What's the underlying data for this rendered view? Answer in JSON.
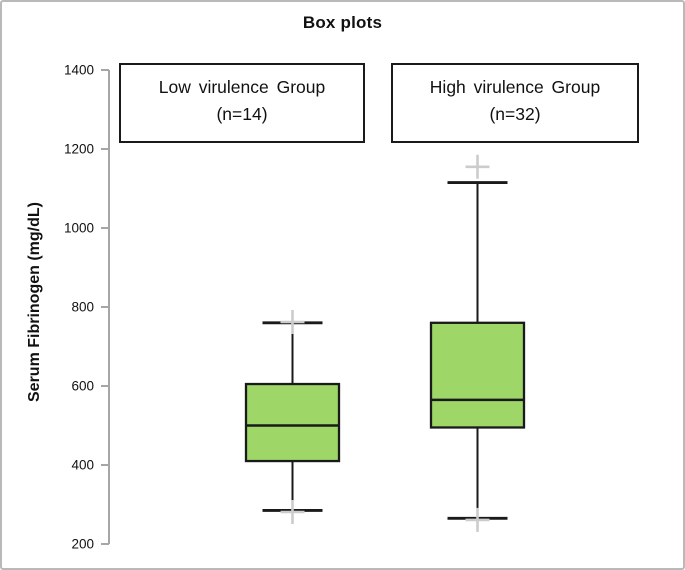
{
  "figure": {
    "background": "#ffffff",
    "border_color": "#b9b9b9"
  },
  "chart_data": {
    "type": "boxplot",
    "title": "Box plots",
    "xlabel": "",
    "ylabel": "Serum Fibrinogen (mg/dL)",
    "ylim": [
      200,
      1400
    ],
    "yticks": [
      200,
      400,
      600,
      800,
      1000,
      1200,
      1400
    ],
    "grid": false,
    "legend_position": "top-inside-boxes",
    "groups": [
      {
        "label": "Low virulence Group",
        "count_label": "(n=14)",
        "whisker_low": 285,
        "q1": 410,
        "median": 500,
        "q3": 605,
        "whisker_high": 760,
        "cross_markers": [
          762,
          281
        ]
      },
      {
        "label": "High virulence Group",
        "count_label": "(n=32)",
        "whisker_low": 265,
        "q1": 495,
        "median": 565,
        "q3": 760,
        "whisker_high": 1115,
        "cross_markers": [
          1155,
          261
        ]
      }
    ],
    "colors": {
      "box_fill": "#9ed768",
      "line": "#1a1a1a",
      "axis": "#a6a6a6",
      "marker": "#cccccc",
      "tick_label": "#111111"
    }
  }
}
